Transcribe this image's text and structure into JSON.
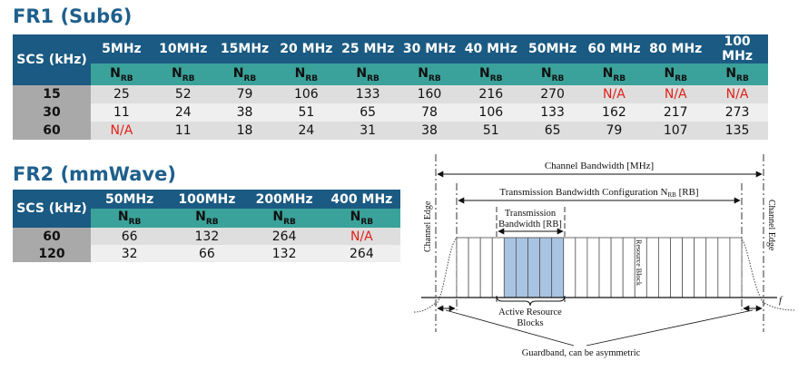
{
  "fr1": {
    "title": "FR1 (Sub6)",
    "scs_header": "SCS (kHz)",
    "nrb_label": "N",
    "nrb_sub": "RB",
    "bandwidths": [
      "5MHz",
      "10MHz",
      "15MHz",
      "20 MHz",
      "25 MHz",
      "30 MHz",
      "40 MHz",
      "50MHz",
      "60 MHz",
      "80 MHz",
      "100 MHz"
    ],
    "rows": [
      {
        "scs": "15",
        "values": [
          "25",
          "52",
          "79",
          "106",
          "133",
          "160",
          "216",
          "270",
          "N/A",
          "N/A",
          "N/A"
        ]
      },
      {
        "scs": "30",
        "values": [
          "11",
          "24",
          "38",
          "51",
          "65",
          "78",
          "106",
          "133",
          "162",
          "217",
          "273"
        ]
      },
      {
        "scs": "60",
        "values": [
          "N/A",
          "11",
          "18",
          "24",
          "31",
          "38",
          "51",
          "65",
          "79",
          "107",
          "135"
        ]
      }
    ]
  },
  "fr2": {
    "title": "FR2 (mmWave)",
    "scs_header": "SCS (kHz)",
    "nrb_label": "N",
    "nrb_sub": "RB",
    "bandwidths": [
      "50MHz",
      "100MHz",
      "200MHz",
      "400 MHz"
    ],
    "rows": [
      {
        "scs": "60",
        "values": [
          "66",
          "132",
          "264",
          "N/A"
        ]
      },
      {
        "scs": "120",
        "values": [
          "32",
          "66",
          "132",
          "264"
        ]
      }
    ]
  },
  "diagram": {
    "channel_bandwidth": "Channel Bandwidth [MHz]",
    "tx_bw_config": "Transmission Bandwidth Configuration N",
    "tx_bw_config_sub": "RB",
    "tx_bw_config_unit": " [RB]",
    "tx_bw_line1": "Transmission",
    "tx_bw_line2": "Bandwidth [RB]",
    "channel_edge_left": "Channel Edge",
    "channel_edge_right": "Channel Edge",
    "resource_block": "Resource Block",
    "active_rb_line1": "Active Resource",
    "active_rb_line2": "Blocks",
    "guardband": "Guardband, can be asymmetric",
    "freq_axis": "f",
    "na_value": "N/A",
    "colors": {
      "header": "#1b5a82",
      "nrb_row": "#3aa29a",
      "scs_col": "#a9a9a9",
      "na": "#e0211a",
      "active_rb": "#a9c4e2"
    }
  }
}
